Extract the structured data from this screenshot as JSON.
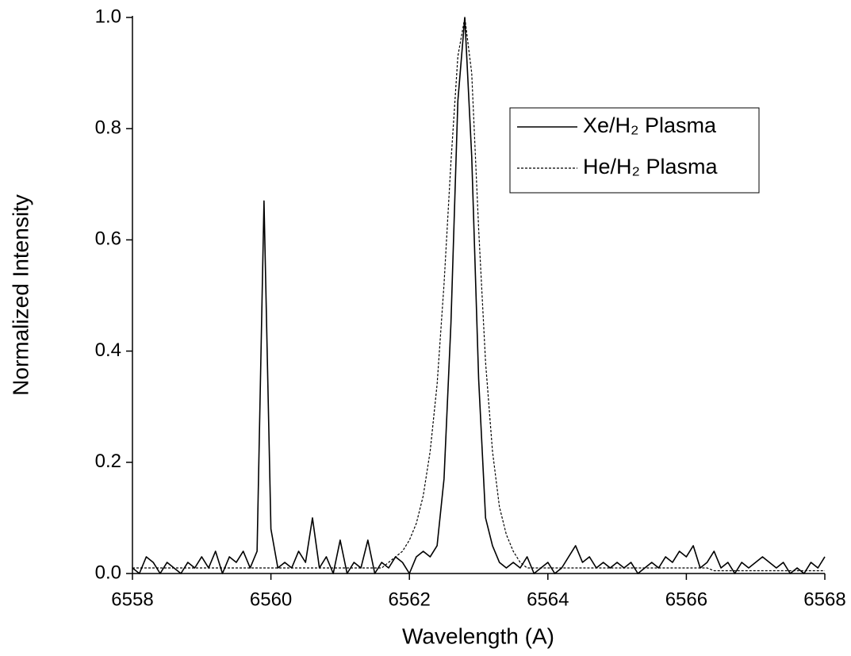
{
  "chart_data": {
    "type": "line",
    "x_label": "Wavelength (A)",
    "y_label": "Normalized Intensity",
    "x": [
      6558,
      6558.1,
      6558.2,
      6558.3,
      6558.4,
      6558.5,
      6558.6,
      6558.7,
      6558.8,
      6558.9,
      6559,
      6559.1,
      6559.2,
      6559.3,
      6559.4,
      6559.5,
      6559.6,
      6559.7,
      6559.8,
      6559.9,
      6560,
      6560.1,
      6560.2,
      6560.3,
      6560.4,
      6560.5,
      6560.6,
      6560.7,
      6560.8,
      6560.9,
      6561,
      6561.1,
      6561.2,
      6561.3,
      6561.4,
      6561.5,
      6561.6,
      6561.7,
      6561.8,
      6561.9,
      6562,
      6562.1,
      6562.2,
      6562.3,
      6562.4,
      6562.5,
      6562.6,
      6562.7,
      6562.8,
      6562.9,
      6563,
      6563.1,
      6563.2,
      6563.3,
      6563.4,
      6563.5,
      6563.6,
      6563.7,
      6563.8,
      6563.9,
      6564,
      6564.1,
      6564.2,
      6564.3,
      6564.4,
      6564.5,
      6564.6,
      6564.7,
      6564.8,
      6564.9,
      6565,
      6565.1,
      6565.2,
      6565.3,
      6565.4,
      6565.5,
      6565.6,
      6565.7,
      6565.8,
      6565.9,
      6566,
      6566.1,
      6566.2,
      6566.3,
      6566.4,
      6566.5,
      6566.6,
      6566.7,
      6566.8,
      6566.9,
      6567,
      6567.1,
      6567.2,
      6567.3,
      6567.4,
      6567.5,
      6567.6,
      6567.7,
      6567.8,
      6567.9,
      6568
    ],
    "series": [
      {
        "name": "Xe/H₂ Plasma",
        "color": "#000000",
        "linestyle": "solid",
        "values": [
          0.01,
          0.0,
          0.03,
          0.02,
          0.0,
          0.02,
          0.01,
          0.0,
          0.02,
          0.01,
          0.03,
          0.01,
          0.04,
          0.0,
          0.03,
          0.02,
          0.04,
          0.01,
          0.04,
          0.67,
          0.08,
          0.01,
          0.02,
          0.01,
          0.04,
          0.02,
          0.1,
          0.01,
          0.03,
          0.0,
          0.06,
          0.0,
          0.02,
          0.01,
          0.06,
          0.0,
          0.02,
          0.01,
          0.03,
          0.02,
          0.0,
          0.03,
          0.04,
          0.03,
          0.05,
          0.17,
          0.45,
          0.85,
          1.0,
          0.75,
          0.35,
          0.1,
          0.05,
          0.02,
          0.01,
          0.02,
          0.01,
          0.03,
          0.0,
          0.01,
          0.02,
          0.0,
          0.01,
          0.03,
          0.05,
          0.02,
          0.03,
          0.01,
          0.02,
          0.01,
          0.02,
          0.01,
          0.02,
          0.0,
          0.01,
          0.02,
          0.01,
          0.03,
          0.02,
          0.04,
          0.03,
          0.05,
          0.01,
          0.02,
          0.04,
          0.01,
          0.02,
          0.0,
          0.02,
          0.01,
          0.02,
          0.03,
          0.02,
          0.01,
          0.02,
          0.0,
          0.01,
          0.0,
          0.02,
          0.01,
          0.03
        ]
      },
      {
        "name": "He/H₂ Plasma",
        "color": "#000000",
        "linestyle": "dashed",
        "values": [
          0.01,
          0.01,
          0.01,
          0.01,
          0.01,
          0.01,
          0.01,
          0.01,
          0.01,
          0.01,
          0.01,
          0.01,
          0.01,
          0.01,
          0.01,
          0.01,
          0.01,
          0.01,
          0.01,
          0.01,
          0.01,
          0.01,
          0.01,
          0.01,
          0.01,
          0.01,
          0.01,
          0.01,
          0.01,
          0.01,
          0.01,
          0.01,
          0.01,
          0.01,
          0.01,
          0.01,
          0.01,
          0.02,
          0.03,
          0.04,
          0.06,
          0.09,
          0.14,
          0.22,
          0.34,
          0.52,
          0.74,
          0.93,
          1.0,
          0.9,
          0.62,
          0.38,
          0.22,
          0.12,
          0.07,
          0.04,
          0.02,
          0.01,
          0.01,
          0.01,
          0.01,
          0.01,
          0.01,
          0.01,
          0.01,
          0.01,
          0.01,
          0.01,
          0.01,
          0.01,
          0.01,
          0.01,
          0.01,
          0.01,
          0.01,
          0.01,
          0.01,
          0.01,
          0.01,
          0.01,
          0.01,
          0.01,
          0.01,
          0.01,
          0.005,
          0.005,
          0.005,
          0.005,
          0.005,
          0.005,
          0.005,
          0.005,
          0.005,
          0.005,
          0.005,
          0.005,
          0.005,
          0.005,
          0.005,
          0.005,
          0.005
        ]
      }
    ],
    "xlim": [
      6558,
      6568
    ],
    "xticks": [
      6558,
      6560,
      6562,
      6564,
      6566,
      6568
    ],
    "ylim": [
      0,
      1
    ],
    "yticks": [
      {
        "value": 0,
        "label": "0.0"
      },
      0.2,
      0.4,
      0.6,
      0.8,
      {
        "value": 1,
        "label": "1.0"
      }
    ],
    "grid": false,
    "legend": "upper right"
  }
}
